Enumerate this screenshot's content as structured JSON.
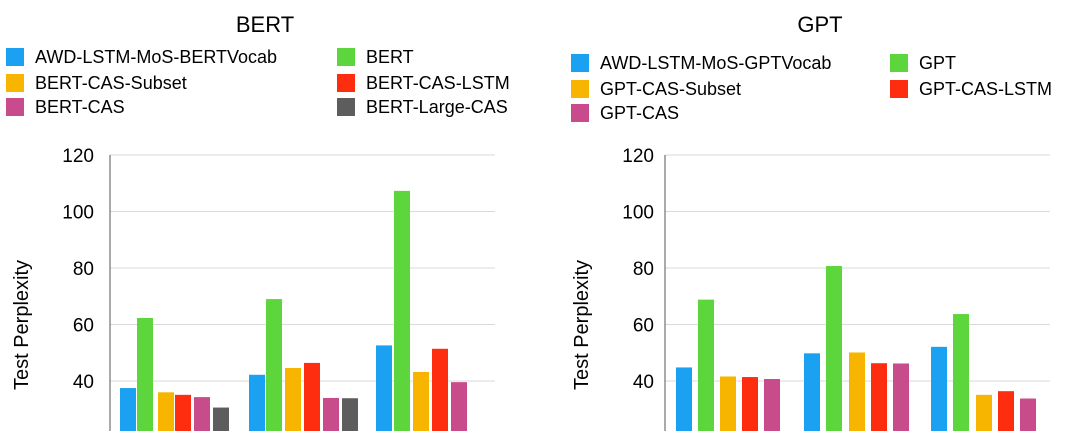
{
  "chart_data": [
    {
      "type": "bar",
      "title": "BERT",
      "ylabel": "Test Perplexity",
      "xlabel": "",
      "ylim": [
        20,
        120
      ],
      "yticks": [
        20,
        40,
        60,
        80,
        100,
        120
      ],
      "grid": true,
      "legend_position": "top",
      "categories": [
        "",
        "",
        ""
      ],
      "series": [
        {
          "name": "AWD-LSTM-MoS-BERTVocab",
          "color": "#1ba1f2",
          "values": [
            37.5,
            42.2,
            52.6
          ]
        },
        {
          "name": "BERT",
          "color": "#5cd63c",
          "values": [
            62.3,
            69.0,
            107.3
          ]
        },
        {
          "name": "BERT-CAS-Subset",
          "color": "#f7b500",
          "values": [
            36.0,
            44.6,
            43.2
          ]
        },
        {
          "name": "BERT-CAS-LSTM",
          "color": "#ff2d0f",
          "values": [
            35.1,
            46.4,
            51.4
          ]
        },
        {
          "name": "BERT-CAS",
          "color": "#c84b8b",
          "values": [
            34.3,
            34.0,
            39.6
          ]
        },
        {
          "name": "BERT-Large-CAS",
          "color": "#5d5d5d",
          "values": [
            30.6,
            33.9,
            null
          ]
        }
      ]
    },
    {
      "type": "bar",
      "title": "GPT",
      "ylabel": "Test Perplexity",
      "xlabel": "",
      "ylim": [
        20,
        120
      ],
      "yticks": [
        20,
        40,
        60,
        80,
        100,
        120
      ],
      "grid": true,
      "legend_position": "top",
      "categories": [
        "",
        "",
        ""
      ],
      "series": [
        {
          "name": "AWD-LSTM-MoS-GPTVocab",
          "color": "#1ba1f2",
          "values": [
            44.8,
            49.8,
            52.1
          ]
        },
        {
          "name": "GPT",
          "color": "#5cd63c",
          "values": [
            68.8,
            80.7,
            63.7
          ]
        },
        {
          "name": "GPT-CAS-Subset",
          "color": "#f7b500",
          "values": [
            41.6,
            50.1,
            35.1
          ]
        },
        {
          "name": "GPT-CAS-LSTM",
          "color": "#ff2d0f",
          "values": [
            41.4,
            46.3,
            36.4
          ]
        },
        {
          "name": "GPT-CAS",
          "color": "#c84b8b",
          "values": [
            40.7,
            46.2,
            33.8
          ]
        }
      ]
    }
  ]
}
